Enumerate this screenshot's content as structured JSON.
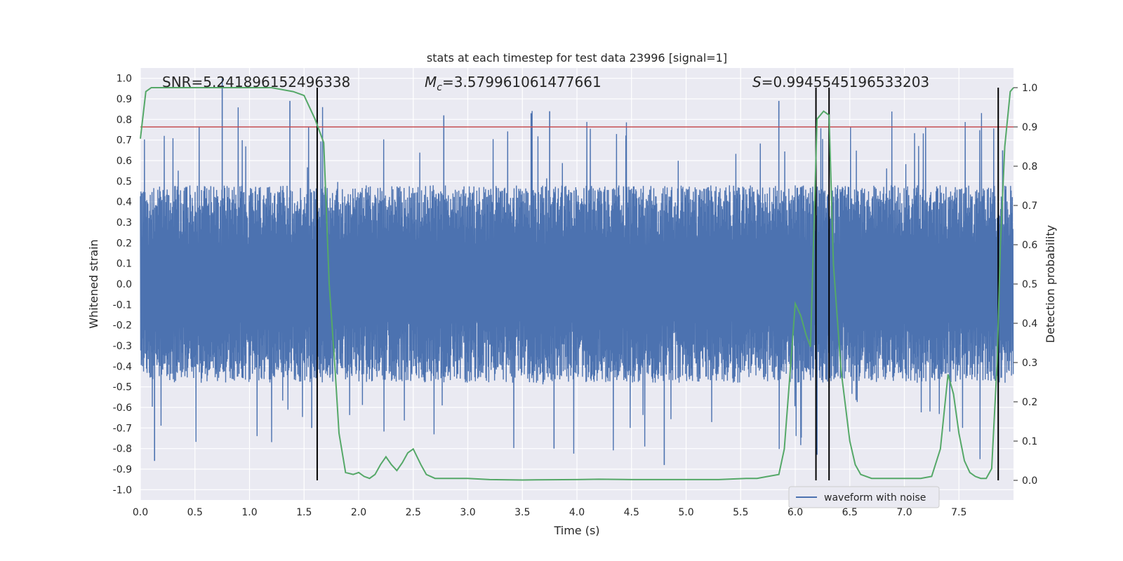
{
  "chart_data": {
    "type": "line",
    "title": "stats at each timestep for test data 23996 [signal=1]",
    "xlabel": "Time (s)",
    "ylabel": "Whitened strain",
    "y2label": "Detection probability",
    "xlim": [
      0,
      8
    ],
    "ylim": [
      -1.05,
      1.05
    ],
    "y2lim": [
      -0.05,
      1.05
    ],
    "xticks": [
      "0.0",
      "0.5",
      "1.0",
      "1.5",
      "2.0",
      "2.5",
      "3.0",
      "3.5",
      "4.0",
      "4.5",
      "5.0",
      "5.5",
      "6.0",
      "6.5",
      "7.0",
      "7.5"
    ],
    "yticks": [
      "1.0",
      "0.9",
      "0.8",
      "0.7",
      "0.6",
      "0.5",
      "0.4",
      "0.3",
      "0.2",
      "0.1",
      "0.0",
      "-0.1",
      "-0.2",
      "-0.3",
      "-0.4",
      "-0.5",
      "-0.6",
      "-0.7",
      "-0.8",
      "-0.9",
      "-1.0"
    ],
    "y2ticks": [
      "1.0",
      "0.9",
      "0.8",
      "0.7",
      "0.6",
      "0.5",
      "0.4",
      "0.3",
      "0.2",
      "0.1",
      "0.0"
    ],
    "annotations": {
      "snr": "SNR=5.241896152496338",
      "mc_symbol": "M",
      "mc_sub": "c",
      "mc_value": "=3.579961061477661",
      "s_symbol": "S",
      "s_value": "=0.9945545196533203"
    },
    "legend": {
      "label": "waveform with noise",
      "placement": "lower-right"
    },
    "threshold": {
      "value": 0.9,
      "axis": "right",
      "color": "#c44e52"
    },
    "vlines": [
      1.62,
      6.19,
      6.31,
      7.86
    ],
    "grid": true,
    "colors": {
      "waveform": "#4c72b0",
      "probability": "#55a868",
      "vline": "#000000",
      "bg": "#eaeaf2"
    },
    "series": [
      {
        "name": "waveform with noise",
        "kind": "noise-envelope",
        "envelope_typical": 0.48,
        "peaks": [
          {
            "x": 0.75,
            "y": 1.0
          },
          {
            "x": 0.13,
            "y": -0.86
          },
          {
            "x": 1.37,
            "y": 0.89
          },
          {
            "x": 1.57,
            "y": -0.7
          },
          {
            "x": 2.78,
            "y": 0.82
          },
          {
            "x": 3.58,
            "y": 0.83
          },
          {
            "x": 3.75,
            "y": 0.84
          },
          {
            "x": 3.79,
            "y": -0.8
          },
          {
            "x": 4.8,
            "y": -0.88
          },
          {
            "x": 5.85,
            "y": 0.89
          },
          {
            "x": 6.2,
            "y": -0.83
          },
          {
            "x": 7.9,
            "y": 0.65
          }
        ]
      },
      {
        "name": "",
        "kind": "probability",
        "x": [
          0.0,
          0.05,
          0.1,
          0.3,
          0.6,
          0.9,
          1.2,
          1.4,
          1.5,
          1.6,
          1.68,
          1.73,
          1.78,
          1.82,
          1.88,
          1.95,
          2.0,
          2.05,
          2.1,
          2.15,
          2.2,
          2.25,
          2.3,
          2.35,
          2.4,
          2.45,
          2.5,
          2.57,
          2.62,
          2.7,
          2.8,
          3.0,
          3.2,
          3.5,
          4.0,
          4.2,
          4.5,
          5.0,
          5.3,
          5.55,
          5.65,
          5.75,
          5.85,
          5.9,
          5.96,
          6.0,
          6.05,
          6.1,
          6.14,
          6.2,
          6.26,
          6.31,
          6.35,
          6.42,
          6.5,
          6.55,
          6.6,
          6.7,
          6.85,
          7.0,
          7.15,
          7.25,
          7.33,
          7.4,
          7.45,
          7.5,
          7.55,
          7.6,
          7.65,
          7.7,
          7.75,
          7.8,
          7.85,
          7.88,
          7.92,
          7.97,
          8.0
        ],
        "y": [
          0.87,
          0.99,
          1.0,
          1.0,
          1.0,
          1.0,
          1.0,
          0.99,
          0.98,
          0.92,
          0.86,
          0.5,
          0.3,
          0.12,
          0.02,
          0.015,
          0.02,
          0.01,
          0.005,
          0.015,
          0.04,
          0.06,
          0.04,
          0.025,
          0.045,
          0.07,
          0.08,
          0.04,
          0.015,
          0.005,
          0.005,
          0.005,
          0.002,
          0.001,
          0.002,
          0.003,
          0.002,
          0.002,
          0.002,
          0.005,
          0.005,
          0.01,
          0.015,
          0.08,
          0.3,
          0.45,
          0.42,
          0.37,
          0.34,
          0.92,
          0.94,
          0.93,
          0.55,
          0.28,
          0.1,
          0.04,
          0.015,
          0.005,
          0.005,
          0.005,
          0.005,
          0.01,
          0.08,
          0.27,
          0.22,
          0.12,
          0.05,
          0.02,
          0.01,
          0.005,
          0.005,
          0.03,
          0.3,
          0.6,
          0.85,
          0.99,
          1.0
        ]
      }
    ]
  }
}
